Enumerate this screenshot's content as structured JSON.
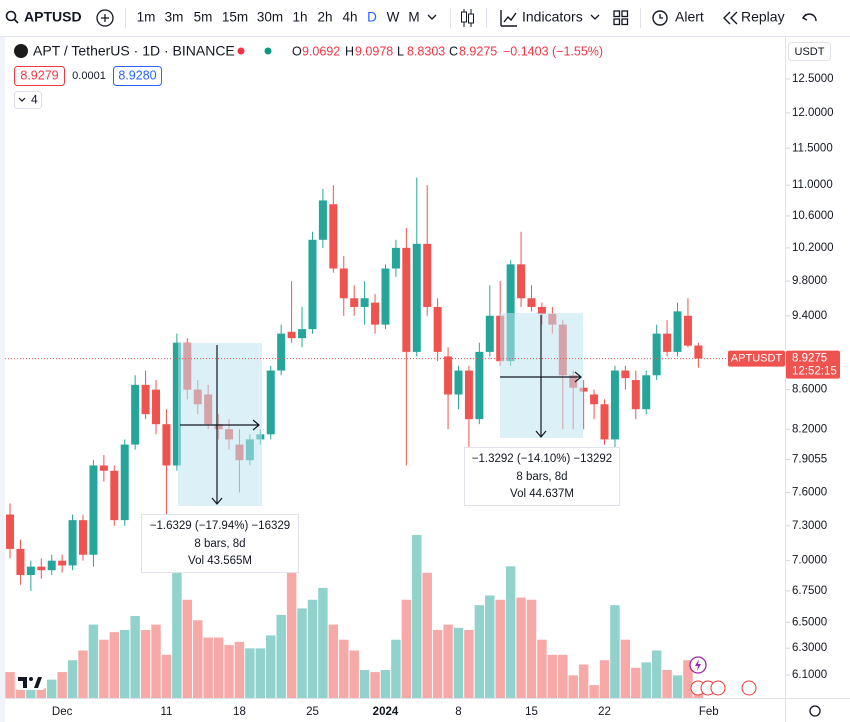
{
  "toolbar": {
    "symbol": "APTUSD",
    "intervals": [
      "1m",
      "3m",
      "5m",
      "15m",
      "30m",
      "1h",
      "2h",
      "4h",
      "D",
      "W",
      "M"
    ],
    "active_interval": "D",
    "indicators": "Indicators",
    "alert": "Alert",
    "replay": "Replay"
  },
  "legend": {
    "title": "APT / TetherUS · 1D · BINANCE",
    "ohlc_labels": [
      "O",
      "H",
      "L",
      "C"
    ],
    "change": "−0.1403 (−1.55%)",
    "bid": "8.9279",
    "spread": "0.0001",
    "ask": "8.9280",
    "indicator_count": "4"
  },
  "price_axis": {
    "currency": "USDT",
    "symbol_label": "APTUSDT",
    "countdown": "12:52:15"
  },
  "measurements": [
    {
      "change": "−1.6329 (−17.94%) −16329",
      "bars": "8 bars, 8d",
      "volume": "Vol 43.565M"
    },
    {
      "change": "−1.3292 (−14.10%) −13292",
      "bars": "8 bars, 8d",
      "volume": "Vol 44.637M"
    }
  ],
  "chart_data": {
    "type": "candlestick",
    "categories": [
      null,
      null,
      null,
      null,
      null,
      "Dec",
      null,
      null,
      null,
      null,
      null,
      null,
      null,
      null,
      null,
      "11",
      null,
      null,
      null,
      null,
      null,
      null,
      "18",
      null,
      null,
      null,
      null,
      null,
      null,
      "25",
      null,
      null,
      null,
      null,
      null,
      null,
      "2024",
      null,
      null,
      null,
      null,
      null,
      null,
      "8",
      null,
      null,
      null,
      null,
      null,
      null,
      "15",
      null,
      null,
      null,
      null,
      null,
      null,
      "22",
      null,
      null,
      null,
      null,
      null,
      null,
      null,
      null,
      null,
      "Feb"
    ],
    "open": [
      7.4,
      7.1,
      6.88,
      6.95,
      6.92,
      7.0,
      6.96,
      7.35,
      7.05,
      7.85,
      7.8,
      7.35,
      8.05,
      8.65,
      8.6,
      8.25,
      7.85,
      9.1,
      8.6,
      8.55,
      8.25,
      8.2,
      8.05,
      7.9,
      8.1,
      8.15,
      8.8,
      9.22,
      9.15,
      9.25,
      10.3,
      10.75,
      9.95,
      9.6,
      9.5,
      9.55,
      9.3,
      9.95,
      10.2,
      9.0,
      10.25,
      9.5,
      8.95,
      8.55,
      8.8,
      8.3,
      9.0,
      9.4,
      8.9,
      10.0,
      9.6,
      9.5,
      9.42,
      9.3,
      8.75,
      8.62,
      8.55,
      8.45,
      8.1,
      8.8,
      8.7,
      8.4,
      8.75,
      9.2,
      9.0,
      9.4,
      9.0692,
      null
    ],
    "high": [
      7.5,
      7.18,
      7.0,
      7.02,
      7.05,
      7.05,
      7.4,
      7.4,
      7.9,
      7.95,
      7.85,
      8.1,
      8.75,
      8.8,
      8.7,
      8.4,
      9.2,
      9.15,
      8.7,
      8.65,
      8.35,
      8.3,
      8.2,
      8.15,
      8.2,
      8.85,
      9.3,
      9.8,
      9.5,
      10.4,
      10.95,
      11.0,
      10.1,
      9.75,
      9.8,
      9.65,
      10.0,
      10.3,
      10.45,
      11.1,
      11.0,
      9.6,
      9.05,
      8.85,
      8.85,
      9.1,
      9.75,
      9.8,
      10.05,
      10.4,
      9.75,
      9.55,
      9.5,
      9.35,
      8.8,
      8.7,
      8.6,
      8.5,
      8.85,
      8.85,
      8.8,
      8.8,
      9.3,
      9.35,
      9.55,
      9.6,
      9.0978,
      null
    ],
    "low": [
      7.02,
      6.8,
      6.75,
      6.85,
      6.88,
      6.9,
      6.92,
      7.0,
      6.95,
      7.7,
      7.3,
      7.3,
      8.0,
      8.3,
      8.15,
      7.4,
      7.8,
      8.5,
      8.35,
      8.2,
      8.1,
      8.0,
      7.6,
      7.85,
      8.05,
      8.1,
      8.75,
      9.1,
      9.05,
      9.2,
      10.2,
      9.9,
      9.4,
      9.4,
      9.3,
      9.2,
      9.25,
      9.85,
      7.85,
      8.95,
      9.4,
      8.9,
      8.2,
      8.4,
      7.95,
      8.25,
      8.95,
      8.85,
      8.85,
      9.5,
      9.45,
      9.3,
      9.2,
      8.2,
      8.2,
      8.2,
      8.3,
      8.05,
      7.5,
      8.6,
      8.3,
      8.35,
      8.7,
      8.95,
      8.95,
      9.05,
      8.8303,
      null
    ],
    "close": [
      7.1,
      6.88,
      6.95,
      6.92,
      7.0,
      6.96,
      7.35,
      7.05,
      7.85,
      7.8,
      7.35,
      8.05,
      8.65,
      8.35,
      8.25,
      7.85,
      9.1,
      8.6,
      8.45,
      8.25,
      8.2,
      8.1,
      7.9,
      8.1,
      8.15,
      8.8,
      9.2,
      9.15,
      9.25,
      10.3,
      10.8,
      9.95,
      9.6,
      9.5,
      9.6,
      9.3,
      9.95,
      10.2,
      9.0,
      10.25,
      9.5,
      9.0,
      8.55,
      8.8,
      8.3,
      9.0,
      9.4,
      8.9,
      10.0,
      9.6,
      9.5,
      9.42,
      9.3,
      8.75,
      8.62,
      8.58,
      8.45,
      8.1,
      8.8,
      8.72,
      8.4,
      8.75,
      9.2,
      9.0,
      9.45,
      9.0678,
      8.9275,
      null
    ],
    "volume": [
      2.4,
      2.0,
      1.5,
      0.9,
      1.7,
      2.4,
      3.5,
      4.4,
      6.8,
      5.4,
      6.1,
      6.3,
      7.6,
      6.3,
      6.8,
      4.0,
      11.7,
      9.1,
      7.2,
      5.6,
      5.6,
      4.9,
      5.2,
      4.6,
      4.6,
      5.8,
      7.7,
      11.9,
      8.3,
      9.1,
      10.2,
      6.8,
      5.4,
      4.4,
      2.6,
      2.4,
      2.6,
      5.4,
      9.1,
      15.1,
      11.6,
      6.3,
      6.8,
      6.5,
      6.3,
      8.6,
      9.5,
      9.1,
      12.2,
      9.3,
      9.1,
      5.4,
      4.0,
      4.0,
      2.1,
      3.1,
      1.2,
      3.5,
      8.6,
      5.4,
      2.8,
      3.3,
      4.4,
      2.6,
      2.1,
      3.5,
      0.6,
      null
    ],
    "ylim": [
      5.955,
      13.1
    ],
    "log_scale": true,
    "yticks": [
      {
        "value": 12.5,
        "label": "12.5000"
      },
      {
        "value": 12,
        "label": "12.0000"
      },
      {
        "value": 11.5,
        "label": "11.5000"
      },
      {
        "value": 11,
        "label": "11.0000"
      },
      {
        "value": 10.6,
        "label": "10.6000"
      },
      {
        "value": 10.2,
        "label": "10.2000"
      },
      {
        "value": 9.8,
        "label": "9.8000"
      },
      {
        "value": 9.4,
        "label": "9.4000"
      },
      {
        "value": 8.6,
        "label": "8.6000"
      },
      {
        "value": 8.2,
        "label": "8.2000"
      },
      7.9055,
      {
        "value": 7.6,
        "label": "7.6000"
      },
      {
        "value": 7.3,
        "label": "7.3000"
      },
      {
        "value": 7,
        "label": "7.0000"
      },
      {
        "value": 6.75,
        "label": "6.7500"
      },
      {
        "value": 6.5,
        "label": "6.5000"
      },
      {
        "value": 6.3,
        "label": "6.3000"
      },
      {
        "value": 6.1,
        "label": "6.1000"
      }
    ],
    "up_color": "#26a69a",
    "down_color": "#ef5350"
  }
}
